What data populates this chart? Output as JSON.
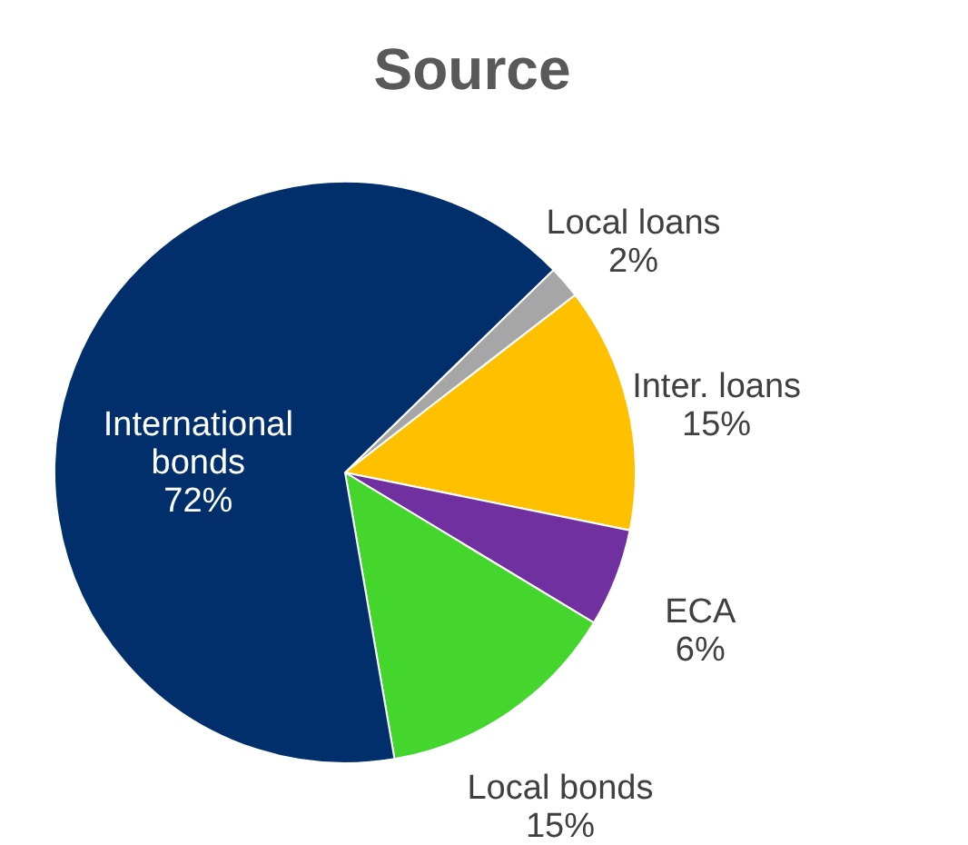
{
  "chart_data": {
    "type": "pie",
    "title": "Source",
    "categories": [
      "Local loans",
      "Inter. loans",
      "ECA",
      "Local bonds",
      "International bonds"
    ],
    "values": [
      2,
      15,
      6,
      15,
      72
    ],
    "value_labels": [
      "2%",
      "15%",
      "6%",
      "15%",
      "72%"
    ],
    "colors": [
      "#a6a6a6",
      "#ffc000",
      "#7030a0",
      "#44d62c",
      "#002f6c"
    ],
    "legend": false
  }
}
